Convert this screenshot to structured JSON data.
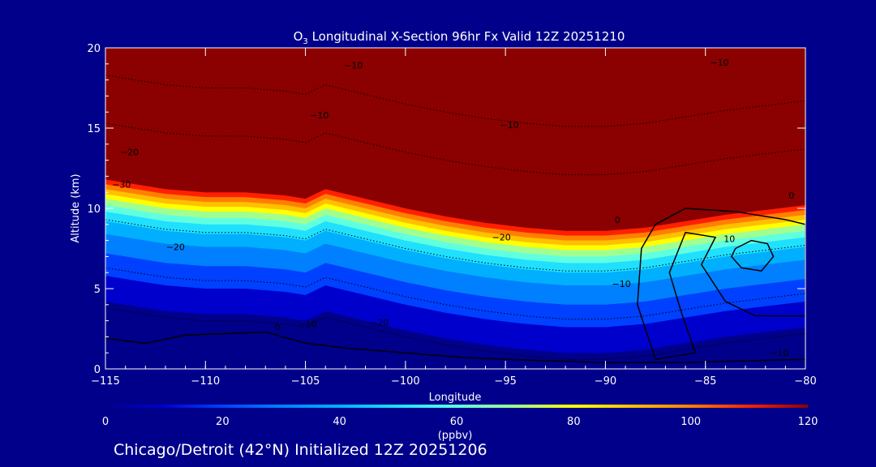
{
  "chart_data": {
    "type": "heatmap",
    "title_species": "O",
    "title_subscript": "3",
    "title_rest": " Longitudinal X-Section 96hr  Fx Valid 12Z 20251210",
    "xlabel": "Longitude",
    "ylabel": "Altitude (km)",
    "xlim": [
      -115,
      -80
    ],
    "ylim": [
      0,
      20
    ],
    "x_ticks": [
      -115,
      -110,
      -105,
      -100,
      -95,
      -90,
      -85,
      -80
    ],
    "x_tick_labels": [
      "−115",
      "−110",
      "−105",
      "−100",
      "−95",
      "−90",
      "−85",
      "−80"
    ],
    "y_ticks": [
      0,
      5,
      10,
      15,
      20
    ],
    "y_tick_labels": [
      "0",
      "5",
      "10",
      "15",
      "20"
    ],
    "colorbar": {
      "min": 0,
      "max": 120,
      "ticks": [
        0,
        20,
        40,
        60,
        80,
        100,
        120
      ],
      "tick_labels": [
        "0",
        "20",
        "40",
        "60",
        "80",
        "100",
        "120"
      ],
      "unit": "(ppbv)",
      "colors": [
        "#00008b",
        "#0000cd",
        "#0040ff",
        "#0080ff",
        "#00b0ff",
        "#20e0ff",
        "#60ffe0",
        "#a0ff90",
        "#ffff00",
        "#ffc000",
        "#ff8000",
        "#ff2000",
        "#8b0000"
      ]
    },
    "ozone_profile": [
      {
        "x": -115,
        "top": 11.8
      },
      {
        "x": -112,
        "top": 11.2
      },
      {
        "x": -110,
        "top": 11.0
      },
      {
        "x": -108,
        "top": 11.0
      },
      {
        "x": -106,
        "top": 10.8
      },
      {
        "x": -105,
        "top": 10.6
      },
      {
        "x": -104,
        "top": 11.2
      },
      {
        "x": -102,
        "top": 10.6
      },
      {
        "x": -100,
        "top": 10.0
      },
      {
        "x": -98,
        "top": 9.5
      },
      {
        "x": -96,
        "top": 9.1
      },
      {
        "x": -94,
        "top": 8.8
      },
      {
        "x": -92,
        "top": 8.6
      },
      {
        "x": -90,
        "top": 8.6
      },
      {
        "x": -88,
        "top": 8.8
      },
      {
        "x": -86,
        "top": 9.2
      },
      {
        "x": -84,
        "top": 9.6
      },
      {
        "x": -82,
        "top": 9.9
      },
      {
        "x": -80,
        "top": 10.2
      }
    ],
    "terrain": [
      {
        "x": -115,
        "y": 1.9
      },
      {
        "x": -113,
        "y": 1.6
      },
      {
        "x": -111,
        "y": 2.1
      },
      {
        "x": -109,
        "y": 2.2
      },
      {
        "x": -107,
        "y": 2.3
      },
      {
        "x": -105,
        "y": 1.6
      },
      {
        "x": -103,
        "y": 1.3
      },
      {
        "x": -100,
        "y": 1.0
      },
      {
        "x": -97,
        "y": 0.7
      },
      {
        "x": -94,
        "y": 0.55
      },
      {
        "x": -90,
        "y": 0.4
      },
      {
        "x": -86,
        "y": 0.4
      },
      {
        "x": -83,
        "y": 0.5
      },
      {
        "x": -80,
        "y": 0.6
      }
    ],
    "contour_labels": [
      {
        "x": -113.8,
        "y": 13.3,
        "text": "−20"
      },
      {
        "x": -114.2,
        "y": 11.3,
        "text": "−30"
      },
      {
        "x": -111.5,
        "y": 7.4,
        "text": "−20"
      },
      {
        "x": -106.4,
        "y": 2.4,
        "text": "0"
      },
      {
        "x": -104.9,
        "y": 2.6,
        "text": "−10"
      },
      {
        "x": -101.3,
        "y": 2.7,
        "text": "−20"
      },
      {
        "x": -104.3,
        "y": 15.6,
        "text": "−10"
      },
      {
        "x": -102.6,
        "y": 18.7,
        "text": "−10"
      },
      {
        "x": -94.8,
        "y": 15.0,
        "text": "−10"
      },
      {
        "x": -84.3,
        "y": 18.9,
        "text": "−10"
      },
      {
        "x": -95.2,
        "y": 8.0,
        "text": "−20"
      },
      {
        "x": -89.2,
        "y": 5.1,
        "text": "−10"
      },
      {
        "x": -89.4,
        "y": 9.1,
        "text": "0"
      },
      {
        "x": -83.8,
        "y": 7.9,
        "text": "10"
      },
      {
        "x": -80.7,
        "y": 10.6,
        "text": "0"
      },
      {
        "x": -81.3,
        "y": 0.8,
        "text": "−10"
      }
    ]
  },
  "footer_text": "Chicago/Detroit (42°N) Initialized 12Z 20251206"
}
